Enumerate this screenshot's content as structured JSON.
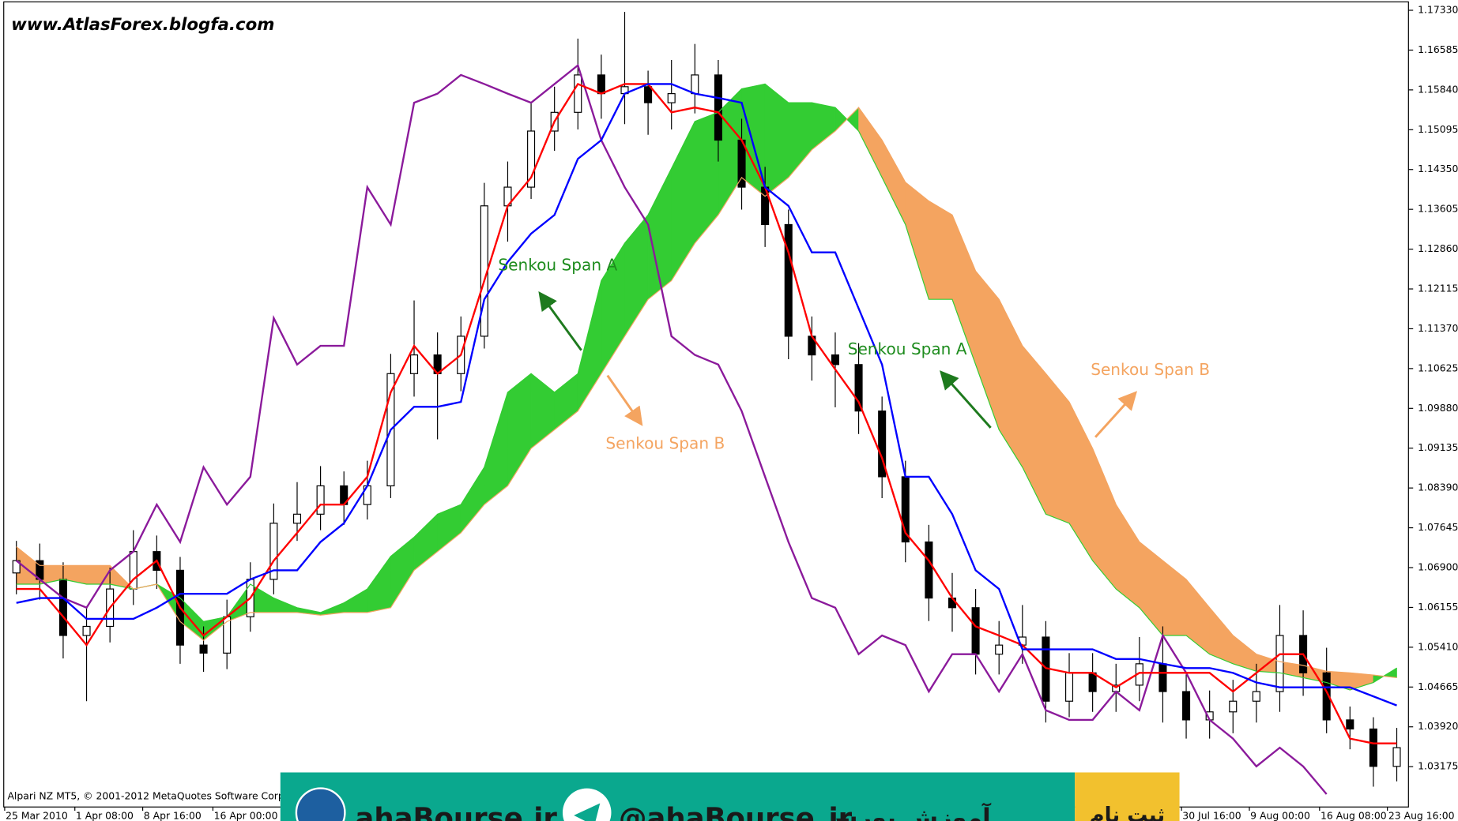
{
  "chart_data": {
    "type": "candlestick",
    "watermark": "www.AtlasForex.blogfa.com",
    "footnote": "Alpari NZ MT5, © 2001-2012 MetaQuotes Software Corp.",
    "xlim": [
      0,
      60
    ],
    "xticks": [
      {
        "value": 0,
        "label": "25 Mar 2010"
      },
      {
        "value": 3,
        "label": "1 Apr 08:00"
      },
      {
        "value": 5.9,
        "label": "8 Apr 16:00"
      },
      {
        "value": 8.9,
        "label": "16 Apr 00:00"
      },
      {
        "value": 50.3,
        "label": "30 Jul 16:00"
      },
      {
        "value": 53.2,
        "label": "9 Aug 00:00"
      },
      {
        "value": 56.2,
        "label": "16 Aug 08:00"
      },
      {
        "value": 59.1,
        "label": "23 Aug 16:00"
      }
    ],
    "ylim": [
      1.0242,
      1.1747
    ],
    "yticks": [
      {
        "value": 1.1733,
        "label": "1.17330"
      },
      1.16585,
      {
        "value": 1.1584,
        "label": "1.15840"
      },
      1.15095,
      {
        "value": 1.1435,
        "label": "1.14350"
      },
      1.13605,
      {
        "value": 1.1286,
        "label": "1.12860"
      },
      1.12115,
      {
        "value": 1.1137,
        "label": "1.11370"
      },
      1.10625,
      {
        "value": 1.0988,
        "label": "1.09880"
      },
      1.09135,
      {
        "value": 1.0839,
        "label": "1.08390"
      },
      1.07645,
      {
        "value": 1.069,
        "label": "1.06900"
      },
      1.06155,
      {
        "value": 1.0541,
        "label": "1.05410"
      },
      1.04665,
      {
        "value": 1.0392,
        "label": "1.03920"
      },
      1.03175
    ],
    "up_color": "#ffffff",
    "down_color": "#000000",
    "open": [
      1.068,
      1.0703,
      1.0668,
      1.0563,
      1.058,
      1.065,
      1.072,
      1.0685,
      1.0545,
      1.053,
      1.0598,
      1.0668,
      1.0773,
      1.079,
      1.0843,
      1.0808,
      1.0843,
      1.1053,
      1.1088,
      1.1053,
      1.1123,
      1.1367,
      1.1402,
      1.1507,
      1.1542,
      1.1612,
      1.1577,
      1.159,
      1.156,
      1.1577,
      1.1612,
      1.149,
      1.1402,
      1.1332,
      1.1123,
      1.1088,
      1.107,
      1.0983,
      1.086,
      1.0738,
      1.0633,
      1.0615,
      1.0528,
      1.0545,
      1.056,
      1.044,
      1.0493,
      1.0458,
      1.047,
      1.051,
      1.0458,
      1.0405,
      1.042,
      1.044,
      1.0458,
      1.0563,
      1.0493,
      1.0405,
      1.0388,
      1.0318
    ],
    "high": [
      1.074,
      1.0735,
      1.07,
      1.0615,
      1.069,
      1.076,
      1.075,
      1.071,
      1.058,
      1.063,
      1.07,
      1.081,
      1.085,
      1.088,
      1.087,
      1.089,
      1.109,
      1.119,
      1.113,
      1.116,
      1.141,
      1.145,
      1.156,
      1.159,
      1.168,
      1.165,
      1.173,
      1.162,
      1.164,
      1.167,
      1.164,
      1.153,
      1.144,
      1.136,
      1.116,
      1.113,
      1.111,
      1.101,
      1.089,
      1.077,
      1.068,
      1.065,
      1.059,
      1.062,
      1.059,
      1.053,
      1.053,
      1.051,
      1.056,
      1.058,
      1.049,
      1.046,
      1.048,
      1.051,
      1.062,
      1.061,
      1.054,
      1.043,
      1.041,
      1.039
    ],
    "low": [
      1.064,
      1.063,
      1.052,
      1.044,
      1.055,
      1.062,
      1.065,
      1.051,
      1.0495,
      1.05,
      1.057,
      1.064,
      1.074,
      1.076,
      1.077,
      1.078,
      1.082,
      1.101,
      1.093,
      1.102,
      1.11,
      1.13,
      1.138,
      1.147,
      1.151,
      1.153,
      1.152,
      1.15,
      1.151,
      1.154,
      1.145,
      1.136,
      1.129,
      1.108,
      1.104,
      1.099,
      1.094,
      1.082,
      1.07,
      1.059,
      1.057,
      1.049,
      1.049,
      1.051,
      1.04,
      1.041,
      1.042,
      1.042,
      1.044,
      1.04,
      1.037,
      1.037,
      1.038,
      1.04,
      1.042,
      1.045,
      1.038,
      1.035,
      1.028,
      1.029
    ],
    "close": [
      1.0703,
      1.0668,
      1.0563,
      1.058,
      1.065,
      1.072,
      1.0685,
      1.0545,
      1.053,
      1.0598,
      1.0668,
      1.0773,
      1.079,
      1.0843,
      1.0808,
      1.0843,
      1.1053,
      1.1088,
      1.1053,
      1.1123,
      1.1367,
      1.1402,
      1.1507,
      1.1542,
      1.1612,
      1.1577,
      1.159,
      1.156,
      1.1577,
      1.1612,
      1.149,
      1.1402,
      1.1332,
      1.1123,
      1.1088,
      1.107,
      1.0983,
      1.086,
      1.0738,
      1.0633,
      1.0615,
      1.0528,
      1.0545,
      1.056,
      1.044,
      1.0493,
      1.0458,
      1.047,
      1.051,
      1.0458,
      1.0405,
      1.042,
      1.044,
      1.0458,
      1.0563,
      1.0493,
      1.0405,
      1.0388,
      1.0318,
      1.0353
    ],
    "series": [
      {
        "color": "#ff0000",
        "values": [
          1.065,
          1.065,
          1.0598,
          1.0545,
          1.0615,
          1.0668,
          1.0703,
          1.0615,
          1.0563,
          1.0598,
          1.0633,
          1.0703,
          1.0755,
          1.0808,
          1.0808,
          1.086,
          1.1018,
          1.1105,
          1.1053,
          1.1088,
          1.1227,
          1.1367,
          1.142,
          1.1525,
          1.1595,
          1.1577,
          1.1595,
          1.1595,
          1.1542,
          1.1551,
          1.1542,
          1.149,
          1.1402,
          1.128,
          1.1123,
          1.1061,
          1.1,
          1.0895,
          1.0755,
          1.0703,
          1.0633,
          1.058,
          1.0563,
          1.0545,
          1.0502,
          1.0493,
          1.0493,
          1.0466,
          1.0493,
          1.0493,
          1.0493,
          1.0493,
          1.0458,
          1.0493,
          1.0528,
          1.0528,
          1.0458,
          1.037,
          1.0361,
          1.0361
        ]
      },
      {
        "color": "#0000ff",
        "values": [
          1.0624,
          1.0633,
          1.0633,
          1.0594,
          1.0594,
          1.0594,
          1.0615,
          1.0641,
          1.0641,
          1.0641,
          1.0668,
          1.0685,
          1.0685,
          1.0738,
          1.0773,
          1.0843,
          1.0948,
          1.0991,
          1.0991,
          1.1,
          1.1192,
          1.1262,
          1.1315,
          1.135,
          1.1455,
          1.149,
          1.1577,
          1.1595,
          1.1595,
          1.1577,
          1.1569,
          1.156,
          1.1402,
          1.1367,
          1.128,
          1.128,
          1.1175,
          1.107,
          1.086,
          1.086,
          1.079,
          1.0685,
          1.065,
          1.0537,
          1.0537,
          1.0537,
          1.0537,
          1.0519,
          1.0519,
          1.051,
          1.0502,
          1.0502,
          1.0493,
          1.0475,
          1.0466,
          1.0466,
          1.0466,
          1.0466,
          1.0449,
          1.0432
        ]
      },
      {
        "color": "#8b1a9b",
        "values": [
          1.0703,
          1.0668,
          1.0633,
          1.0615,
          1.0685,
          1.072,
          1.0808,
          1.0738,
          1.0878,
          1.0808,
          1.086,
          1.1157,
          1.107,
          1.1105,
          1.1105,
          1.1402,
          1.1332,
          1.156,
          1.1577,
          1.1612,
          1.1595,
          1.1577,
          1.156,
          1.1595,
          1.163,
          1.149,
          1.1402,
          1.1332,
          1.1123,
          1.1088,
          1.107,
          1.0983,
          1.086,
          1.0738,
          1.0633,
          1.0615,
          1.0528,
          1.0563,
          1.0545,
          1.0458,
          1.0528,
          1.0528,
          1.0458,
          1.0528,
          1.0423,
          1.0405,
          1.0405,
          1.0458,
          1.0423,
          1.0563,
          1.0493,
          1.0405,
          1.037,
          1.0318,
          1.0353,
          1.0318,
          1.0266,
          null,
          null,
          null
        ]
      },
      {
        "color": "#33cc33",
        "values": [
          1.0659,
          1.0659,
          1.0668,
          1.0659,
          1.0659,
          1.065,
          1.0659,
          1.0633,
          1.0589,
          1.0598,
          1.0659,
          1.0633,
          1.0615,
          1.0606,
          1.0624,
          1.065,
          1.0711,
          1.0747,
          1.079,
          1.0808,
          1.0878,
          1.1018,
          1.1053,
          1.1018,
          1.1053,
          1.1227,
          1.1297,
          1.135,
          1.1437,
          1.1525,
          1.1542,
          1.1586,
          1.1595,
          1.156,
          1.156,
          1.1551,
          1.1507,
          1.142,
          1.1332,
          1.1192,
          1.1192,
          1.107,
          1.0948,
          1.0878,
          1.079,
          1.0773,
          1.0703,
          1.065,
          1.0615,
          1.0563,
          1.0563,
          1.0528,
          1.051,
          1.0496,
          1.0493,
          1.0484,
          1.0475,
          1.0461,
          1.0475,
          1.0502
        ]
      },
      {
        "color": "#f4a460",
        "values": [
          1.0729,
          1.0694,
          1.0694,
          1.0694,
          1.0694,
          1.065,
          1.0659,
          1.0589,
          1.0554,
          1.0589,
          1.0606,
          1.0606,
          1.0606,
          1.0601,
          1.0606,
          1.0606,
          1.0615,
          1.0685,
          1.072,
          1.0755,
          1.0808,
          1.0843,
          1.0913,
          1.0948,
          1.0983,
          1.1053,
          1.1123,
          1.1192,
          1.1227,
          1.1297,
          1.135,
          1.142,
          1.1385,
          1.142,
          1.1472,
          1.1507,
          1.1551,
          1.149,
          1.1411,
          1.1376,
          1.135,
          1.1245,
          1.1192,
          1.1105,
          1.1053,
          1.1,
          1.0913,
          1.0808,
          1.0738,
          1.0703,
          1.0668,
          1.0615,
          1.0563,
          1.0528,
          1.0514,
          1.0507,
          1.0496,
          1.0493,
          1.0489,
          1.0484
        ]
      }
    ],
    "annotations": [
      {
        "text": "Senkou Span A",
        "color": "#1e8c1e"
      },
      {
        "text": "Senkou Span B",
        "color": "#f4a460"
      },
      {
        "text": "Senkou Span A",
        "color": "#1e8c1e"
      },
      {
        "text": "Senkou Span B",
        "color": "#f4a460"
      }
    ]
  },
  "banner": {
    "site": "ahaBourse.ir",
    "channel": "@ahaBourse_ir",
    "slogan": "آموزش بورس",
    "button": "ثبت نام"
  }
}
